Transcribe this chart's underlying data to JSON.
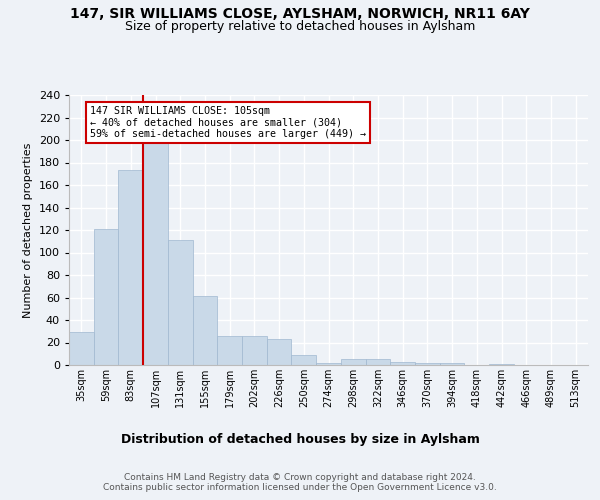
{
  "title1": "147, SIR WILLIAMS CLOSE, AYLSHAM, NORWICH, NR11 6AY",
  "title2": "Size of property relative to detached houses in Aylsham",
  "xlabel": "Distribution of detached houses by size in Aylsham",
  "ylabel": "Number of detached properties",
  "bin_labels": [
    "35sqm",
    "59sqm",
    "83sqm",
    "107sqm",
    "131sqm",
    "155sqm",
    "179sqm",
    "202sqm",
    "226sqm",
    "250sqm",
    "274sqm",
    "298sqm",
    "322sqm",
    "346sqm",
    "370sqm",
    "394sqm",
    "418sqm",
    "442sqm",
    "466sqm",
    "489sqm",
    "513sqm"
  ],
  "bar_heights": [
    29,
    121,
    173,
    197,
    111,
    61,
    26,
    26,
    23,
    9,
    2,
    5,
    5,
    3,
    2,
    2,
    0,
    1,
    0,
    0,
    0
  ],
  "bar_color": "#c9d9e8",
  "bar_edge_color": "#a0b8d0",
  "annotation_text": "147 SIR WILLIAMS CLOSE: 105sqm\n← 40% of detached houses are smaller (304)\n59% of semi-detached houses are larger (449) →",
  "annotation_box_color": "#ffffff",
  "annotation_box_edge_color": "#cc0000",
  "vline_color": "#cc0000",
  "ylim": [
    0,
    240
  ],
  "yticks": [
    0,
    20,
    40,
    60,
    80,
    100,
    120,
    140,
    160,
    180,
    200,
    220,
    240
  ],
  "footnote": "Contains HM Land Registry data © Crown copyright and database right 2024.\nContains public sector information licensed under the Open Government Licence v3.0.",
  "bg_color": "#eef2f7",
  "grid_color": "#ffffff"
}
